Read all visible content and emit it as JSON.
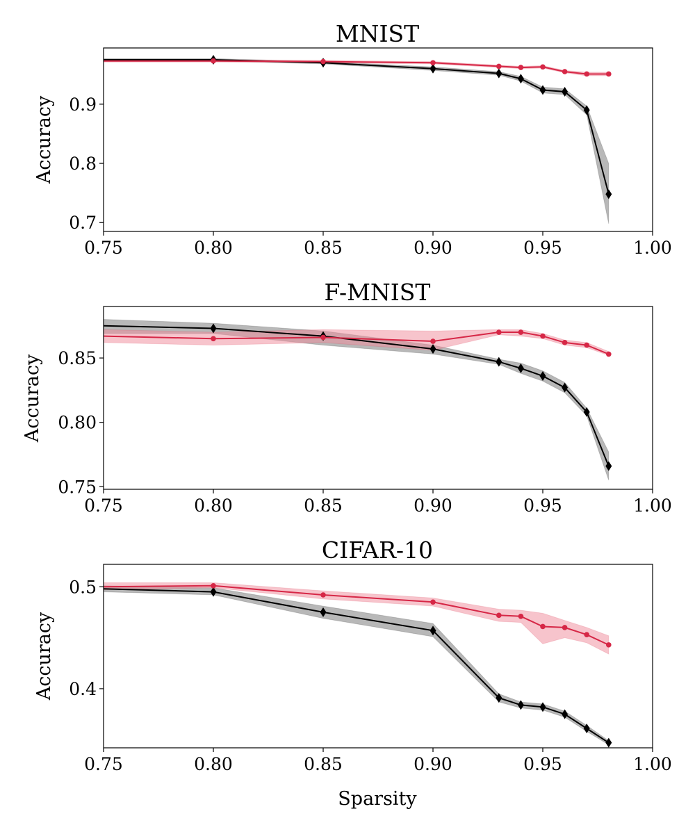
{
  "figure": {
    "xlabel": "Sparsity"
  },
  "colors": {
    "black_series": "#000000",
    "red_series": "#d62746",
    "black_band": "#888888",
    "red_band": "#f08a9a"
  },
  "chart_data": [
    {
      "type": "line",
      "title": "MNIST",
      "xlabel": "",
      "ylabel": "Accuracy",
      "xlim": [
        0.75,
        1.0
      ],
      "ylim": [
        0.685,
        0.995
      ],
      "xticks": [
        0.75,
        0.8,
        0.85,
        0.9,
        0.95,
        1.0
      ],
      "xtick_labels": [
        "0.75",
        "0.80",
        "0.85",
        "0.90",
        "0.95",
        "1.00"
      ],
      "yticks": [
        0.7,
        0.8,
        0.9
      ],
      "ytick_labels": [
        "0.7",
        "0.8",
        "0.9"
      ],
      "series": [
        {
          "name": "black",
          "color": "#000000",
          "marker": "diamond",
          "x": [
            0.75,
            0.8,
            0.85,
            0.9,
            0.93,
            0.94,
            0.95,
            0.96,
            0.97,
            0.98
          ],
          "values": [
            0.975,
            0.975,
            0.97,
            0.96,
            0.952,
            0.943,
            0.924,
            0.921,
            0.89,
            0.748
          ],
          "lower": [
            0.973,
            0.973,
            0.968,
            0.957,
            0.949,
            0.939,
            0.919,
            0.916,
            0.882,
            0.698
          ],
          "upper": [
            0.977,
            0.977,
            0.972,
            0.963,
            0.955,
            0.947,
            0.929,
            0.926,
            0.897,
            0.8
          ]
        },
        {
          "name": "red",
          "color": "#d62746",
          "marker": "circle",
          "x": [
            0.75,
            0.8,
            0.85,
            0.9,
            0.93,
            0.94,
            0.95,
            0.96,
            0.97,
            0.98
          ],
          "values": [
            0.973,
            0.973,
            0.972,
            0.97,
            0.964,
            0.962,
            0.963,
            0.955,
            0.951,
            0.951
          ],
          "lower": [
            0.971,
            0.971,
            0.97,
            0.968,
            0.962,
            0.96,
            0.961,
            0.953,
            0.948,
            0.948
          ],
          "upper": [
            0.975,
            0.975,
            0.974,
            0.972,
            0.966,
            0.964,
            0.965,
            0.957,
            0.954,
            0.954
          ]
        }
      ]
    },
    {
      "type": "line",
      "title": "F-MNIST",
      "xlabel": "",
      "ylabel": "Accuracy",
      "xlim": [
        0.75,
        1.0
      ],
      "ylim": [
        0.748,
        0.89
      ],
      "xticks": [
        0.75,
        0.8,
        0.85,
        0.9,
        0.95,
        1.0
      ],
      "xtick_labels": [
        "0.75",
        "0.80",
        "0.85",
        "0.90",
        "0.95",
        "1.00"
      ],
      "yticks": [
        0.75,
        0.8,
        0.85
      ],
      "ytick_labels": [
        "0.75",
        "0.80",
        "0.85"
      ],
      "series": [
        {
          "name": "black",
          "color": "#000000",
          "marker": "diamond",
          "x": [
            0.75,
            0.8,
            0.85,
            0.9,
            0.93,
            0.94,
            0.95,
            0.96,
            0.97,
            0.98
          ],
          "values": [
            0.875,
            0.873,
            0.867,
            0.857,
            0.847,
            0.842,
            0.836,
            0.827,
            0.808,
            0.766
          ],
          "lower": [
            0.869,
            0.869,
            0.86,
            0.853,
            0.845,
            0.838,
            0.832,
            0.823,
            0.805,
            0.755
          ],
          "upper": [
            0.88,
            0.877,
            0.871,
            0.86,
            0.849,
            0.846,
            0.84,
            0.831,
            0.811,
            0.777
          ]
        },
        {
          "name": "red",
          "color": "#d62746",
          "marker": "circle",
          "x": [
            0.75,
            0.8,
            0.85,
            0.9,
            0.93,
            0.94,
            0.95,
            0.96,
            0.97,
            0.98
          ],
          "values": [
            0.867,
            0.865,
            0.866,
            0.863,
            0.87,
            0.87,
            0.867,
            0.862,
            0.86,
            0.853
          ],
          "lower": [
            0.862,
            0.86,
            0.862,
            0.856,
            0.868,
            0.867,
            0.865,
            0.86,
            0.858,
            0.852
          ],
          "upper": [
            0.872,
            0.87,
            0.872,
            0.871,
            0.872,
            0.872,
            0.869,
            0.864,
            0.862,
            0.855
          ]
        }
      ]
    },
    {
      "type": "line",
      "title": "CIFAR-10",
      "xlabel": "Sparsity",
      "ylabel": "Accuracy",
      "xlim": [
        0.75,
        1.0
      ],
      "ylim": [
        0.342,
        0.522
      ],
      "xticks": [
        0.75,
        0.8,
        0.85,
        0.9,
        0.95,
        1.0
      ],
      "xtick_labels": [
        "0.75",
        "0.80",
        "0.85",
        "0.90",
        "0.95",
        "1.00"
      ],
      "yticks": [
        0.4,
        0.5
      ],
      "ytick_labels": [
        "0.4",
        "0.5"
      ],
      "series": [
        {
          "name": "black",
          "color": "#000000",
          "marker": "diamond",
          "x": [
            0.75,
            0.8,
            0.85,
            0.9,
            0.93,
            0.94,
            0.95,
            0.96,
            0.97,
            0.98
          ],
          "values": [
            0.498,
            0.495,
            0.475,
            0.457,
            0.391,
            0.384,
            0.382,
            0.375,
            0.361,
            0.347
          ],
          "lower": [
            0.495,
            0.492,
            0.469,
            0.451,
            0.387,
            0.381,
            0.379,
            0.372,
            0.358,
            0.345
          ],
          "upper": [
            0.501,
            0.499,
            0.481,
            0.464,
            0.395,
            0.387,
            0.385,
            0.378,
            0.364,
            0.349
          ]
        },
        {
          "name": "red",
          "color": "#d62746",
          "marker": "circle",
          "x": [
            0.75,
            0.8,
            0.85,
            0.9,
            0.93,
            0.94,
            0.95,
            0.96,
            0.97,
            0.98
          ],
          "values": [
            0.5,
            0.501,
            0.492,
            0.485,
            0.472,
            0.471,
            0.461,
            0.46,
            0.453,
            0.443
          ],
          "lower": [
            0.497,
            0.499,
            0.488,
            0.481,
            0.466,
            0.465,
            0.444,
            0.45,
            0.445,
            0.434
          ],
          "upper": [
            0.504,
            0.504,
            0.496,
            0.489,
            0.478,
            0.477,
            0.474,
            0.467,
            0.46,
            0.452
          ]
        }
      ]
    }
  ]
}
